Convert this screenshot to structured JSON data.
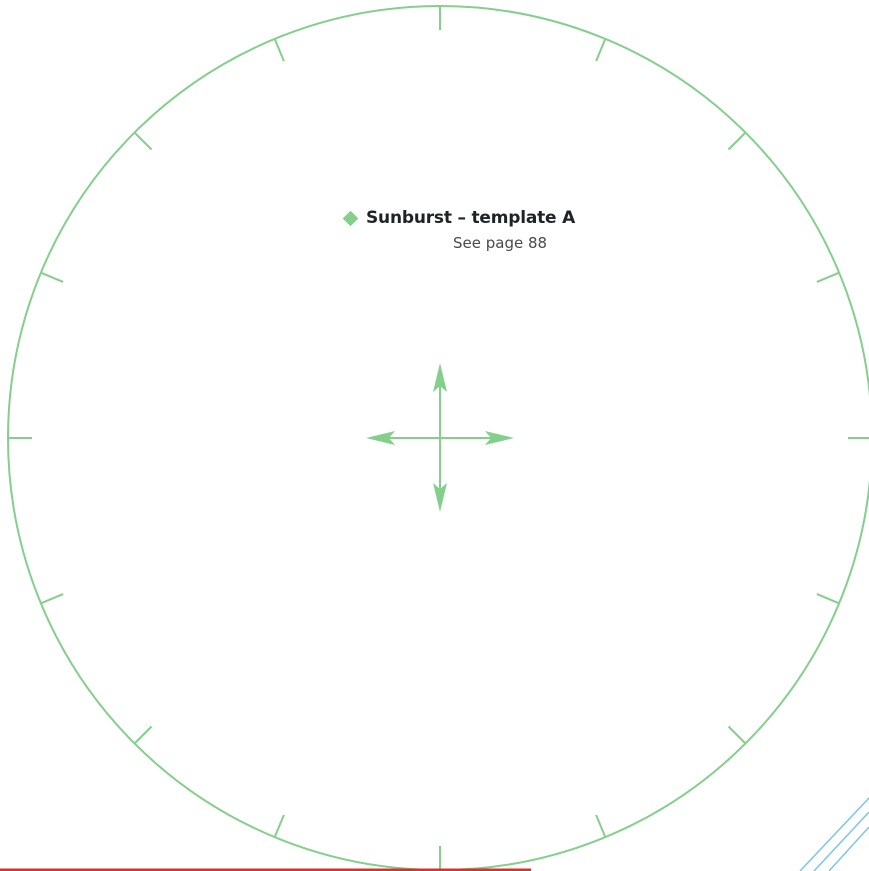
{
  "template": {
    "title": "Sunburst – template A",
    "reference": "See page 88",
    "tick_count": 16,
    "colors": {
      "outline": "#84cf8c",
      "bottom_rule": "#d8322f",
      "corner_lines": "#7ec6e0",
      "text": "#1f2328"
    },
    "icons": {
      "bullet": "diamond-icon",
      "center": "crosshair-arrows-icon"
    }
  }
}
